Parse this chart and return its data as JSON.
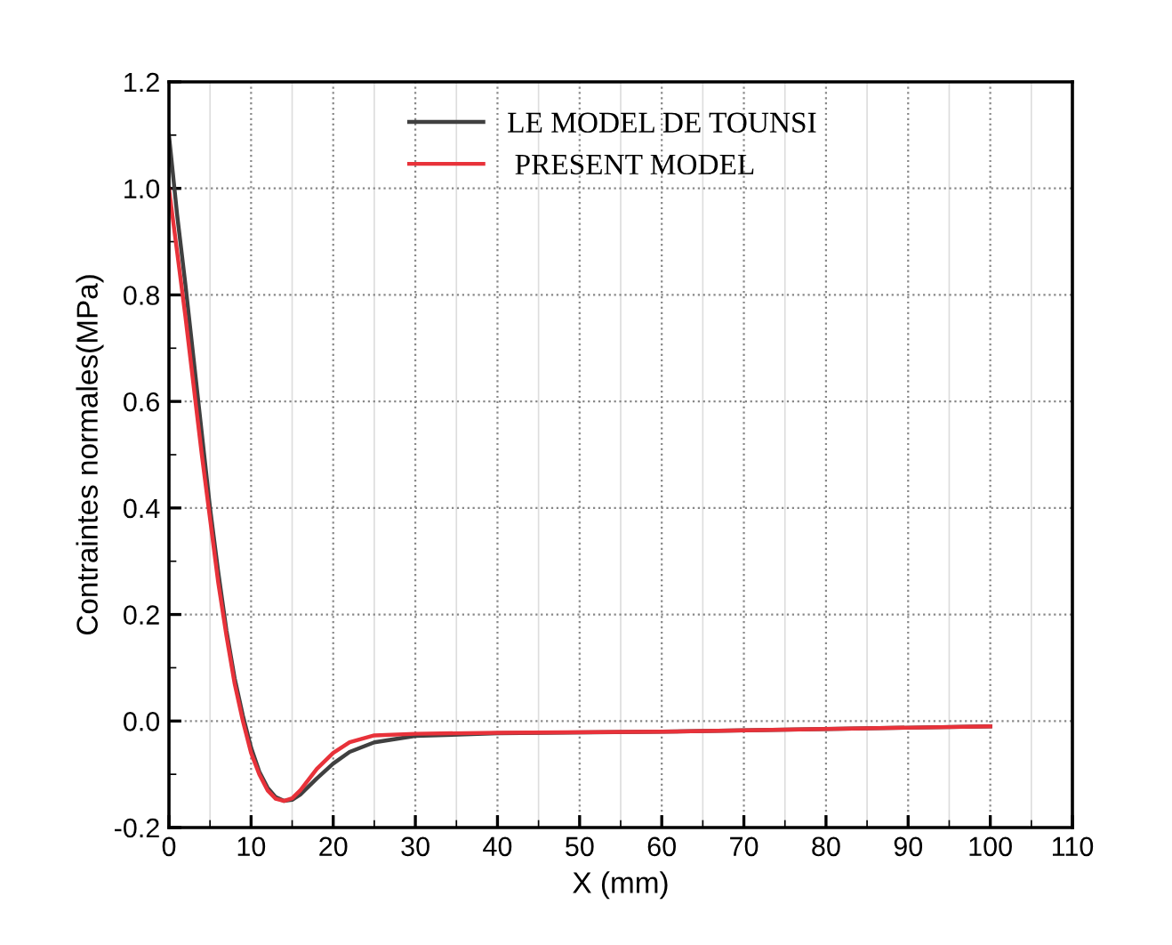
{
  "chart_data": {
    "type": "line",
    "xlabel": "X (mm)",
    "ylabel": "Contraintes normales(MPa)",
    "xlim": [
      0,
      110
    ],
    "xticks": [
      0,
      10,
      20,
      30,
      40,
      50,
      60,
      70,
      80,
      90,
      100,
      110
    ],
    "ylim": [
      -0.2,
      1.2
    ],
    "yticks": [
      {
        "value": -0.2,
        "label": "-0.2"
      },
      {
        "value": 0,
        "label": "0.0"
      },
      {
        "value": 0.2,
        "label": "0.2"
      },
      {
        "value": 0.4,
        "label": "0.4"
      },
      {
        "value": 0.6,
        "label": "0.6"
      },
      {
        "value": 0.8,
        "label": "0.8"
      },
      {
        "value": 1.0,
        "label": "1.0"
      },
      {
        "value": 1.2,
        "label": "1.2"
      }
    ],
    "grid": true,
    "legend": "top right",
    "marker": "none",
    "line_style": "solid",
    "series": [
      {
        "name": "LE MODEL DE TOUNSI",
        "color": "#404040",
        "x": [
          0,
          1,
          2,
          3,
          4,
          5,
          6,
          7,
          8,
          9,
          10,
          11,
          12,
          13,
          14,
          15,
          16,
          18,
          20,
          22,
          25,
          30,
          40,
          60,
          80,
          100
        ],
        "values": [
          1.1,
          0.95,
          0.82,
          0.68,
          0.54,
          0.4,
          0.28,
          0.17,
          0.08,
          0.01,
          -0.05,
          -0.095,
          -0.125,
          -0.143,
          -0.15,
          -0.148,
          -0.138,
          -0.108,
          -0.08,
          -0.058,
          -0.04,
          -0.028,
          -0.023,
          -0.02,
          -0.015,
          -0.01
        ]
      },
      {
        "name": " PRESENT MODEL",
        "color": "#e8323a",
        "x": [
          0,
          1,
          2,
          3,
          4,
          5,
          6,
          7,
          8,
          9,
          10,
          11,
          12,
          13,
          14,
          15,
          16,
          18,
          20,
          22,
          25,
          30,
          40,
          60,
          80,
          100
        ],
        "values": [
          1.0,
          0.88,
          0.76,
          0.63,
          0.5,
          0.38,
          0.26,
          0.16,
          0.07,
          0.0,
          -0.06,
          -0.1,
          -0.13,
          -0.146,
          -0.15,
          -0.145,
          -0.13,
          -0.09,
          -0.06,
          -0.04,
          -0.027,
          -0.024,
          -0.022,
          -0.02,
          -0.015,
          -0.01
        ]
      }
    ]
  }
}
